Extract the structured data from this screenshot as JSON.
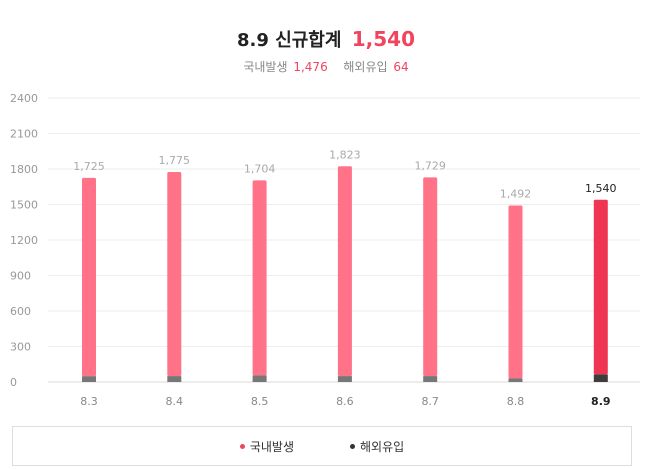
{
  "header": {
    "date": "8.9",
    "title": "신규합계",
    "total": "1,540",
    "domestic_label": "국내발생",
    "domestic_value": "1,476",
    "overseas_label": "해외유입",
    "overseas_value": "64"
  },
  "chart_data": {
    "type": "bar",
    "stacked": true,
    "categories": [
      "8.3",
      "8.4",
      "8.5",
      "8.6",
      "8.7",
      "8.8",
      "8.9"
    ],
    "totals": [
      1725,
      1775,
      1704,
      1823,
      1729,
      1492,
      1540
    ],
    "total_labels": [
      "1,725",
      "1,775",
      "1,704",
      "1,823",
      "1,729",
      "1,492",
      "1,540"
    ],
    "series": [
      {
        "name": "국내발생",
        "values": [
          1676,
          1725,
          1648,
          1773,
          1679,
          1461,
          1476
        ],
        "color": "#ff7288",
        "highlight_color": "#f03553"
      },
      {
        "name": "해외유입",
        "values": [
          49,
          50,
          56,
          50,
          50,
          31,
          64
        ],
        "color": "#777777",
        "highlight_color": "#3d3d3d"
      }
    ],
    "highlight_index": 6,
    "ylim": [
      0,
      2400
    ],
    "yticks": [
      "0",
      "300",
      "600",
      "900",
      "1200",
      "1500",
      "1800",
      "2100",
      "2400"
    ],
    "grid": true,
    "legend_position": "bottom"
  },
  "legend": {
    "domestic_label": "국내발생",
    "overseas_label": "해외유입",
    "domestic_color": "#f0455f",
    "overseas_color": "#333333"
  }
}
